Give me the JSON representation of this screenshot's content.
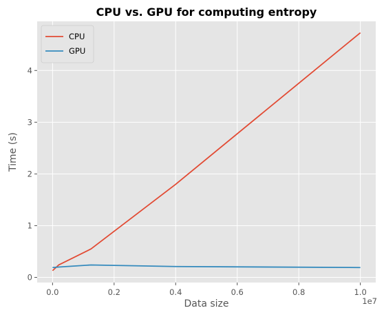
{
  "chart_data": {
    "type": "line",
    "title": "CPU vs. GPU for computing entropy",
    "xlabel": "Data size",
    "ylabel": "Time (s)",
    "x_offset_label": "1e7",
    "xlim": [
      -0.05,
      1.05
    ],
    "ylim": [
      -0.1,
      4.95
    ],
    "x_ticks": [
      0.0,
      0.2,
      0.4,
      0.6,
      0.8,
      1.0
    ],
    "x_tick_labels": [
      "0.0",
      "0.2",
      "0.4",
      "0.6",
      "0.8",
      "1.0"
    ],
    "y_ticks": [
      0,
      1,
      2,
      3,
      4
    ],
    "y_tick_labels": [
      "0",
      "1",
      "2",
      "3",
      "4"
    ],
    "grid": true,
    "legend_position": "top-left",
    "series": [
      {
        "name": "CPU",
        "color": "#E24A33",
        "x": [
          0.0,
          0.02,
          0.125,
          0.4,
          1.0
        ],
        "y": [
          0.13,
          0.24,
          0.55,
          1.8,
          4.73
        ]
      },
      {
        "name": "GPU",
        "color": "#348ABD",
        "x": [
          0.0,
          0.02,
          0.125,
          0.4,
          1.0
        ],
        "y": [
          0.19,
          0.2,
          0.24,
          0.21,
          0.19
        ]
      }
    ]
  }
}
